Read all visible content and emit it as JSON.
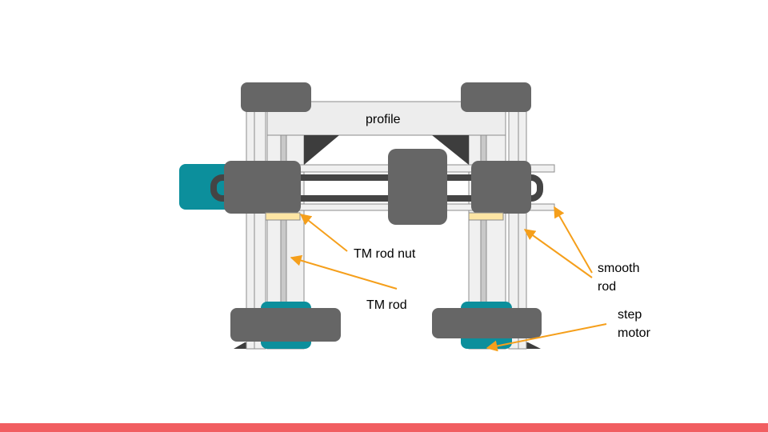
{
  "labels": {
    "profile": "profile",
    "tm_rod_nut": "TM rod nut",
    "tm_rod": "TM rod",
    "smooth_rod_line1": "smooth",
    "smooth_rod_line2": "rod",
    "step_motor_line1": "step",
    "step_motor_line2": "motor"
  },
  "colors": {
    "block": "#666666",
    "motor": "#0c8f9c",
    "nut": "#fde5a4",
    "frame": "#f0f0f0",
    "frame_stroke": "#8c8c8c",
    "arrow": "#f59f1b",
    "footer": "#f15e61",
    "belt": "#444444",
    "bracket": "#3d3d3d"
  }
}
